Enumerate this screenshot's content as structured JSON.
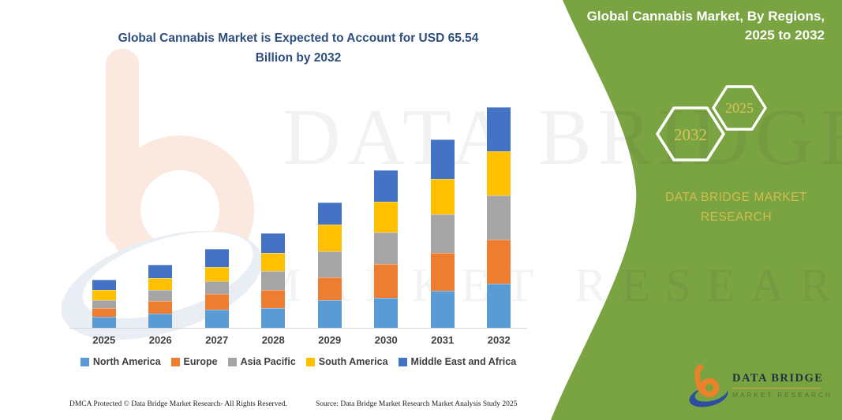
{
  "header": {
    "title_line1": "Global Cannabis Market is Expected to Account for USD 65.54",
    "title_line2": "Billion by 2032"
  },
  "side_panel": {
    "title_line1": "Global Cannabis Market, By Regions,",
    "title_line2": "2025 to 2032",
    "hexagons": [
      {
        "label": "2032"
      },
      {
        "label": "2025"
      }
    ],
    "brand_line1": "DATA BRIDGE MARKET",
    "brand_line2": "RESEARCH",
    "panel_color": "#7aa342",
    "accent_gold": "#d2bd4e"
  },
  "logo": {
    "name": "DATA BRIDGE",
    "subtitle": "MARKET RESEARCH"
  },
  "watermark": {
    "line1": "DATA BRIDGE",
    "line2": "MARKET RESEARCH"
  },
  "footer": {
    "left": "DMCA Protected © Data Bridge Market Research-  All Rights Reserved.",
    "right": "Source: Data Bridge Market Research  Market Analysis Study 2025"
  },
  "chart_data": {
    "type": "bar",
    "stacked": true,
    "title": "Global Cannabis Market is Expected to Account for USD 65.54 Billion by 2032",
    "unit": "USD Billion",
    "categories": [
      "2025",
      "2026",
      "2027",
      "2028",
      "2029",
      "2030",
      "2031",
      "2032"
    ],
    "series": [
      {
        "name": "North America",
        "color": "#5B9BD5",
        "values": [
          3.2,
          4.1,
          5.3,
          5.9,
          8.3,
          8.8,
          11.0,
          13.1
        ]
      },
      {
        "name": "Europe",
        "color": "#ED7D31",
        "values": [
          2.7,
          3.9,
          4.7,
          5.3,
          6.7,
          10.1,
          11.2,
          13.2
        ]
      },
      {
        "name": "Asia Pacific",
        "color": "#A5A5A5",
        "values": [
          2.4,
          3.3,
          3.9,
          5.7,
          7.6,
          9.5,
          11.5,
          13.0
        ]
      },
      {
        "name": "South America",
        "color": "#FFC000",
        "values": [
          3.0,
          3.5,
          4.2,
          5.3,
          8.0,
          9.1,
          10.6,
          13.2
        ]
      },
      {
        "name": "Middle East and Africa",
        "color": "#4472C4",
        "values": [
          2.9,
          4.0,
          5.3,
          5.9,
          6.6,
          9.4,
          11.7,
          13.04
        ]
      }
    ],
    "totals": [
      14.2,
      18.8,
      23.4,
      28.1,
      37.2,
      46.9,
      56.0,
      65.54
    ],
    "ylim": [
      0,
      66
    ],
    "gridlines": false,
    "y_axis_hidden": true,
    "legend_position": "bottom"
  }
}
